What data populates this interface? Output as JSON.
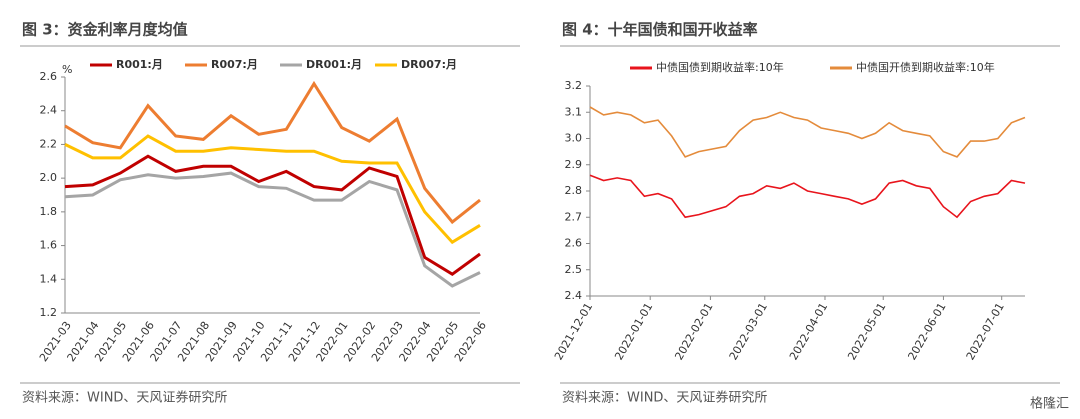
{
  "chart_data": [
    {
      "type": "line",
      "title": "图 3：资金利率月度均值",
      "unit": "%",
      "source": "资料来源：WIND、天风证券研究所",
      "categories": [
        "2021-03",
        "2021-04",
        "2021-05",
        "2021-06",
        "2021-07",
        "2021-08",
        "2021-09",
        "2021-10",
        "2021-11",
        "2021-12",
        "2022-01",
        "2022-02",
        "2022-03",
        "2022-04",
        "2022-05",
        "2022-06"
      ],
      "series": [
        {
          "name": "R001:月",
          "color": "#c00000",
          "values": [
            1.95,
            1.96,
            2.03,
            2.13,
            2.04,
            2.07,
            2.07,
            1.98,
            2.04,
            1.95,
            1.93,
            2.06,
            2.01,
            1.53,
            1.43,
            1.55
          ]
        },
        {
          "name": "R007:月",
          "color": "#ed7d31",
          "values": [
            2.31,
            2.21,
            2.18,
            2.43,
            2.25,
            2.23,
            2.37,
            2.26,
            2.29,
            2.56,
            2.3,
            2.22,
            2.35,
            1.94,
            1.74,
            1.87
          ]
        },
        {
          "name": "DR001:月",
          "color": "#a5a5a5",
          "values": [
            1.89,
            1.9,
            1.99,
            2.02,
            2.0,
            2.01,
            2.03,
            1.95,
            1.94,
            1.87,
            1.87,
            1.98,
            1.93,
            1.48,
            1.36,
            1.44
          ]
        },
        {
          "name": "DR007:月",
          "color": "#ffc000",
          "values": [
            2.2,
            2.12,
            2.12,
            2.25,
            2.16,
            2.16,
            2.18,
            2.17,
            2.16,
            2.16,
            2.1,
            2.09,
            2.09,
            1.8,
            1.62,
            1.72
          ]
        }
      ],
      "ylim": [
        1.2,
        2.6
      ],
      "yticks": [
        1.2,
        1.4,
        1.6,
        1.8,
        {
          "value": 2,
          "label": "2.0"
        },
        2.2,
        2.4,
        2.6
      ]
    },
    {
      "type": "line",
      "title": "图 4：十年国债和国开收益率",
      "source": "资料来源：WIND、天风证券研究所",
      "x": [
        "2021-12-01",
        "2021-12-08",
        "2021-12-15",
        "2021-12-22",
        "2021-12-29",
        "2022-01-05",
        "2022-01-12",
        "2022-01-19",
        "2022-01-26",
        "2022-02-09",
        "2022-02-16",
        "2022-02-23",
        "2022-03-02",
        "2022-03-09",
        "2022-03-16",
        "2022-03-23",
        "2022-03-30",
        "2022-04-06",
        "2022-04-13",
        "2022-04-20",
        "2022-04-27",
        "2022-05-04",
        "2022-05-11",
        "2022-05-18",
        "2022-05-25",
        "2022-06-01",
        "2022-06-08",
        "2022-06-15",
        "2022-06-22",
        "2022-06-29",
        "2022-07-06",
        "2022-07-13"
      ],
      "series": [
        {
          "name": "中债国债到期收益率:10年",
          "color": "#e8141c",
          "values": [
            2.86,
            2.84,
            2.85,
            2.84,
            2.78,
            2.79,
            2.77,
            2.7,
            2.71,
            2.74,
            2.78,
            2.79,
            2.82,
            2.81,
            2.83,
            2.8,
            2.79,
            2.78,
            2.77,
            2.75,
            2.77,
            2.83,
            2.84,
            2.82,
            2.81,
            2.74,
            2.7,
            2.76,
            2.78,
            2.79,
            2.84,
            2.83
          ]
        },
        {
          "name": "中债国开债到期收益率:10年",
          "color": "#e48b3b",
          "values": [
            3.12,
            3.09,
            3.1,
            3.09,
            3.06,
            3.07,
            3.01,
            2.93,
            2.95,
            2.97,
            3.03,
            3.07,
            3.08,
            3.1,
            3.08,
            3.07,
            3.04,
            3.03,
            3.02,
            3.0,
            3.02,
            3.06,
            3.03,
            3.02,
            3.01,
            2.95,
            2.93,
            2.99,
            2.99,
            3.0,
            3.06,
            3.08
          ]
        }
      ],
      "xlim": [
        "2021-12-01",
        "2022-07-13"
      ],
      "xticks": [
        "2021-12-01",
        "2022-01-01",
        "2022-02-01",
        "2022-03-01",
        "2022-04-01",
        "2022-05-01",
        "2022-06-01",
        "2022-07-01"
      ],
      "ylim": [
        2.4,
        3.2
      ],
      "yticks": [
        2.4,
        2.5,
        2.6,
        2.7,
        2.8,
        2.9,
        {
          "value": 3,
          "label": "3.0"
        },
        3.1,
        3.2
      ]
    }
  ],
  "watermark": "格隆汇"
}
